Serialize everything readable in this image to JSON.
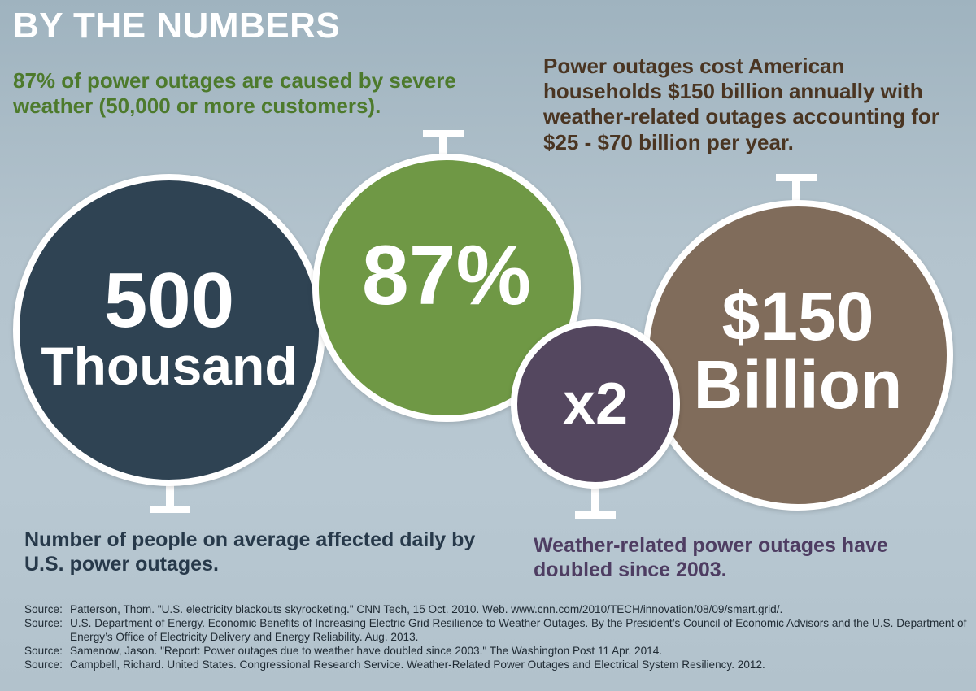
{
  "header": {
    "title": "BY THE NUMBERS"
  },
  "captions": {
    "weather": "87% of power outages are caused by severe weather (50,000 or more customers).",
    "cost": "Power outages cost American households $150 billion annually with weather-related outages accounting for $25 - $70 billion per year.",
    "people": "Number of people on average affected daily by U.S. power outages.",
    "doubled": "Weather-related power outages have doubled since 2003."
  },
  "circles": {
    "people": {
      "line1": "500",
      "line2": "Thousand",
      "color": "#2f4353"
    },
    "percent": {
      "line1": "87%",
      "color": "#6f9845"
    },
    "doubled": {
      "line1": "x2",
      "color": "#54475f"
    },
    "cost": {
      "line1": "$150",
      "line2": "Billion",
      "color": "#806c5b"
    }
  },
  "sources": [
    {
      "label": "Source:",
      "text": "Patterson, Thom. \"U.S. electricity blackouts skyrocketing.\" CNN Tech, 15 Oct. 2010. Web. www.cnn.com/2010/TECH/innovation/08/09/smart.grid/."
    },
    {
      "label": "Source:",
      "text": "U.S. Department of Energy. Economic Benefits of Increasing Electric Grid Resilience to Weather Outages. By the President’s Council of Economic Advisors and the U.S. Department of Energy’s Office of Electricity Delivery and Energy Reliability. Aug. 2013."
    },
    {
      "label": "Source:",
      "text": "Samenow, Jason. \"Report: Power outages due to weather have doubled since 2003.\" The Washington Post 11 Apr. 2014."
    },
    {
      "label": "Source:",
      "text": "Campbell, Richard. United States. Congressional Research Service. Weather-Related Power Outages and Electrical System Resiliency. 2012."
    }
  ]
}
